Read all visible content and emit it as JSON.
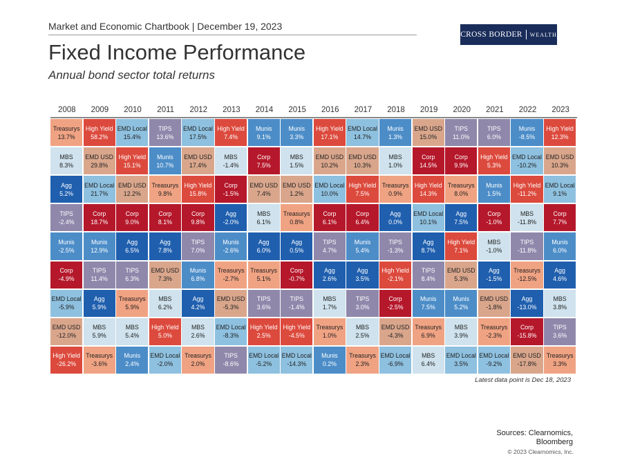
{
  "header": {
    "chartbook": "Market and Economic Chartbook | December 19, 2023"
  },
  "logo": {
    "left": "CROSS BORDER",
    "right": "WEALTH"
  },
  "chart_data": {
    "type": "table",
    "title": "Fixed Income Performance",
    "subtitle": "Annual bond sector total returns",
    "years": [
      "2008",
      "2009",
      "2010",
      "2011",
      "2012",
      "2013",
      "2014",
      "2015",
      "2016",
      "2017",
      "2018",
      "2019",
      "2020",
      "2021",
      "2022",
      "2023"
    ],
    "columns": [
      [
        [
          "Treasurys",
          "13.7%"
        ],
        [
          "MBS",
          "8.3%"
        ],
        [
          "Agg",
          "5.2%"
        ],
        [
          "TIPS",
          "-2.4%"
        ],
        [
          "Munis",
          "-2.5%"
        ],
        [
          "Corp",
          "-4.9%"
        ],
        [
          "EMD Local",
          "-5.9%"
        ],
        [
          "EMD USD",
          "-12.0%"
        ],
        [
          "High Yield",
          "-26.2%"
        ]
      ],
      [
        [
          "High Yield",
          "58.2%"
        ],
        [
          "EMD USD",
          "29.8%"
        ],
        [
          "EMD Local",
          "21.7%"
        ],
        [
          "Corp",
          "18.7%"
        ],
        [
          "Munis",
          "12.9%"
        ],
        [
          "TIPS",
          "11.4%"
        ],
        [
          "Agg",
          "5.9%"
        ],
        [
          "MBS",
          "5.9%"
        ],
        [
          "Treasurys",
          "-3.6%"
        ]
      ],
      [
        [
          "EMD Local",
          "15.4%"
        ],
        [
          "High Yield",
          "15.1%"
        ],
        [
          "EMD USD",
          "12.2%"
        ],
        [
          "Corp",
          "9.0%"
        ],
        [
          "Agg",
          "6.5%"
        ],
        [
          "TIPS",
          "6.3%"
        ],
        [
          "Treasurys",
          "5.9%"
        ],
        [
          "MBS",
          "5.4%"
        ],
        [
          "Munis",
          "2.4%"
        ]
      ],
      [
        [
          "TIPS",
          "13.6%"
        ],
        [
          "Munis",
          "10.7%"
        ],
        [
          "Treasurys",
          "9.8%"
        ],
        [
          "Corp",
          "8.1%"
        ],
        [
          "Agg",
          "7.8%"
        ],
        [
          "EMD USD",
          "7.3%"
        ],
        [
          "MBS",
          "6.2%"
        ],
        [
          "High Yield",
          "5.0%"
        ],
        [
          "EMD Local",
          "-2.0%"
        ]
      ],
      [
        [
          "EMD Local",
          "17.5%"
        ],
        [
          "EMD USD",
          "17.4%"
        ],
        [
          "High Yield",
          "15.8%"
        ],
        [
          "Corp",
          "9.8%"
        ],
        [
          "TIPS",
          "7.0%"
        ],
        [
          "Munis",
          "6.8%"
        ],
        [
          "Agg",
          "4.2%"
        ],
        [
          "MBS",
          "2.6%"
        ],
        [
          "Treasurys",
          "2.0%"
        ]
      ],
      [
        [
          "High Yield",
          "7.4%"
        ],
        [
          "MBS",
          "-1.4%"
        ],
        [
          "Corp",
          "-1.5%"
        ],
        [
          "Agg",
          "-2.0%"
        ],
        [
          "Munis",
          "-2.6%"
        ],
        [
          "Treasurys",
          "-2.7%"
        ],
        [
          "EMD USD",
          "-5.3%"
        ],
        [
          "EMD Local",
          "-8.3%"
        ],
        [
          "TIPS",
          "-8.6%"
        ]
      ],
      [
        [
          "Munis",
          "9.1%"
        ],
        [
          "Corp",
          "7.5%"
        ],
        [
          "EMD USD",
          "7.4%"
        ],
        [
          "MBS",
          "6.1%"
        ],
        [
          "Agg",
          "6.0%"
        ],
        [
          "Treasurys",
          "5.1%"
        ],
        [
          "TIPS",
          "3.6%"
        ],
        [
          "High Yield",
          "2.5%"
        ],
        [
          "EMD Local",
          "-5.2%"
        ]
      ],
      [
        [
          "Munis",
          "3.3%"
        ],
        [
          "MBS",
          "1.5%"
        ],
        [
          "EMD USD",
          "1.2%"
        ],
        [
          "Treasurys",
          "0.8%"
        ],
        [
          "Agg",
          "0.5%"
        ],
        [
          "Corp",
          "-0.7%"
        ],
        [
          "TIPS",
          "-1.4%"
        ],
        [
          "High Yield",
          "-4.5%"
        ],
        [
          "EMD Local",
          "-14.3%"
        ]
      ],
      [
        [
          "High Yield",
          "17.1%"
        ],
        [
          "EMD USD",
          "10.2%"
        ],
        [
          "EMD Local",
          "10.0%"
        ],
        [
          "Corp",
          "6.1%"
        ],
        [
          "TIPS",
          "4.7%"
        ],
        [
          "Agg",
          "2.6%"
        ],
        [
          "MBS",
          "1.7%"
        ],
        [
          "Treasurys",
          "1.0%"
        ],
        [
          "Munis",
          "0.2%"
        ]
      ],
      [
        [
          "EMD Local",
          "14.7%"
        ],
        [
          "EMD USD",
          "10.3%"
        ],
        [
          "High Yield",
          "7.5%"
        ],
        [
          "Corp",
          "6.4%"
        ],
        [
          "Munis",
          "5.4%"
        ],
        [
          "Agg",
          "3.5%"
        ],
        [
          "TIPS",
          "3.0%"
        ],
        [
          "MBS",
          "2.5%"
        ],
        [
          "Treasurys",
          "2.3%"
        ]
      ],
      [
        [
          "Munis",
          "1.3%"
        ],
        [
          "MBS",
          "1.0%"
        ],
        [
          "Treasurys",
          "0.9%"
        ],
        [
          "Agg",
          "0.0%"
        ],
        [
          "TIPS",
          "-1.3%"
        ],
        [
          "High Yield",
          "-2.1%"
        ],
        [
          "Corp",
          "-2.5%"
        ],
        [
          "EMD USD",
          "-4.3%"
        ],
        [
          "EMD Local",
          "-6.9%"
        ]
      ],
      [
        [
          "EMD USD",
          "15.0%"
        ],
        [
          "Corp",
          "14.5%"
        ],
        [
          "High Yield",
          "14.3%"
        ],
        [
          "EMD Local",
          "10.1%"
        ],
        [
          "Agg",
          "8.7%"
        ],
        [
          "TIPS",
          "8.4%"
        ],
        [
          "Munis",
          "7.5%"
        ],
        [
          "Treasurys",
          "6.9%"
        ],
        [
          "MBS",
          "6.4%"
        ]
      ],
      [
        [
          "TIPS",
          "11.0%"
        ],
        [
          "Corp",
          "9.9%"
        ],
        [
          "Treasurys",
          "8.0%"
        ],
        [
          "Agg",
          "7.5%"
        ],
        [
          "High Yield",
          "7.1%"
        ],
        [
          "EMD USD",
          "5.3%"
        ],
        [
          "Munis",
          "5.2%"
        ],
        [
          "MBS",
          "3.9%"
        ],
        [
          "EMD Local",
          "3.5%"
        ]
      ],
      [
        [
          "TIPS",
          "6.0%"
        ],
        [
          "High Yield",
          "5.3%"
        ],
        [
          "Munis",
          "1.5%"
        ],
        [
          "Corp",
          "-1.0%"
        ],
        [
          "MBS",
          "-1.0%"
        ],
        [
          "Agg",
          "-1.5%"
        ],
        [
          "EMD USD",
          "-1.8%"
        ],
        [
          "Treasurys",
          "-2.3%"
        ],
        [
          "EMD Local",
          "-9.2%"
        ]
      ],
      [
        [
          "Munis",
          "-8.5%"
        ],
        [
          "EMD Local",
          "-10.2%"
        ],
        [
          "High Yield",
          "-11.2%"
        ],
        [
          "MBS",
          "-11.8%"
        ],
        [
          "TIPS",
          "-11.8%"
        ],
        [
          "Treasurys",
          "-12.5%"
        ],
        [
          "Agg",
          "-13.0%"
        ],
        [
          "Corp",
          "-15.8%"
        ],
        [
          "EMD USD",
          "-17.8%"
        ]
      ],
      [
        [
          "High Yield",
          "12.3%"
        ],
        [
          "EMD USD",
          "10.3%"
        ],
        [
          "EMD Local",
          "9.1%"
        ],
        [
          "Corp",
          "7.7%"
        ],
        [
          "Munis",
          "6.0%"
        ],
        [
          "Agg",
          "4.6%"
        ],
        [
          "MBS",
          "3.8%"
        ],
        [
          "TIPS",
          "3.6%"
        ],
        [
          "Treasurys",
          "3.3%"
        ]
      ]
    ],
    "sector_colors": {
      "Treasurys": {
        "bg": "#f0a383",
        "fg": "#222222"
      },
      "MBS": {
        "bg": "#cfe2ed",
        "fg": "#222222"
      },
      "Agg": {
        "bg": "#1f5fae",
        "fg": "#ffffff"
      },
      "TIPS": {
        "bg": "#8f88ab",
        "fg": "#ffffff"
      },
      "Munis": {
        "bg": "#4c8dc8",
        "fg": "#ffffff"
      },
      "Corp": {
        "bg": "#b5182b",
        "fg": "#ffffff"
      },
      "EMD Local": {
        "bg": "#8ec0df",
        "fg": "#222222"
      },
      "EMD USD": {
        "bg": "#d9a68c",
        "fg": "#222222"
      },
      "High Yield": {
        "bg": "#dc4a3d",
        "fg": "#ffffff"
      }
    }
  },
  "footer": {
    "note": "Latest data point is Dec 18, 2023",
    "sources_line1": "Sources: Clearnomics,",
    "sources_line2": "Bloomberg",
    "copyright": "© 2023 Clearnomics, Inc."
  }
}
